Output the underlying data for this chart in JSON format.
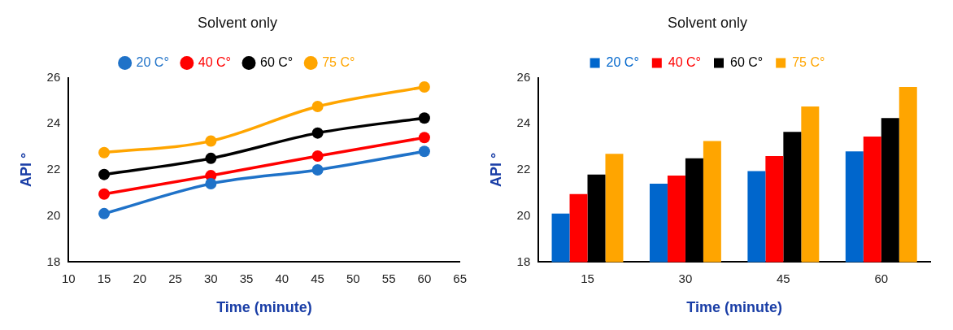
{
  "chart_data": [
    {
      "type": "line",
      "title": "Solvent only",
      "xlabel": "Time (minute)",
      "ylabel": "API °",
      "x": [
        15,
        30,
        45,
        60
      ],
      "xlim": [
        10,
        65
      ],
      "xticks": [
        10,
        15,
        20,
        25,
        30,
        35,
        40,
        45,
        50,
        55,
        60,
        65
      ],
      "ylim": [
        18,
        26
      ],
      "yticks": [
        18,
        20,
        22,
        24,
        26
      ],
      "grid": false,
      "legend": "top",
      "marker": "circle",
      "line_style": "solid",
      "series": [
        {
          "name": "20 C°",
          "color": "#1f72c8",
          "values": [
            20.1,
            21.4,
            22.0,
            22.8
          ]
        },
        {
          "name": "40 C°",
          "color": "#ff0000",
          "values": [
            20.95,
            21.75,
            22.6,
            23.4
          ]
        },
        {
          "name": "60 C°",
          "color": "#000000",
          "values": [
            21.8,
            22.5,
            23.6,
            24.25
          ]
        },
        {
          "name": "75 C°",
          "color": "#ffa500",
          "values": [
            22.75,
            23.25,
            24.75,
            25.6
          ]
        }
      ]
    },
    {
      "type": "bar",
      "title": "Solvent only",
      "xlabel": "Time (minute)",
      "ylabel": "API °",
      "categories": [
        "15",
        "30",
        "45",
        "60"
      ],
      "ylim": [
        18,
        26
      ],
      "yticks": [
        18,
        20,
        22,
        24,
        26
      ],
      "grid": false,
      "legend": "top",
      "series": [
        {
          "name": "20 C°",
          "color": "#0066cc",
          "values": [
            20.1,
            21.4,
            21.95,
            22.8
          ]
        },
        {
          "name": "40 C°",
          "color": "#ff0000",
          "values": [
            20.95,
            21.75,
            22.6,
            23.45
          ]
        },
        {
          "name": "60 C°",
          "color": "#000000",
          "values": [
            21.8,
            22.5,
            23.65,
            24.25
          ]
        },
        {
          "name": "75 C°",
          "color": "#ffa500",
          "values": [
            22.7,
            23.25,
            24.75,
            25.6
          ]
        }
      ]
    }
  ]
}
